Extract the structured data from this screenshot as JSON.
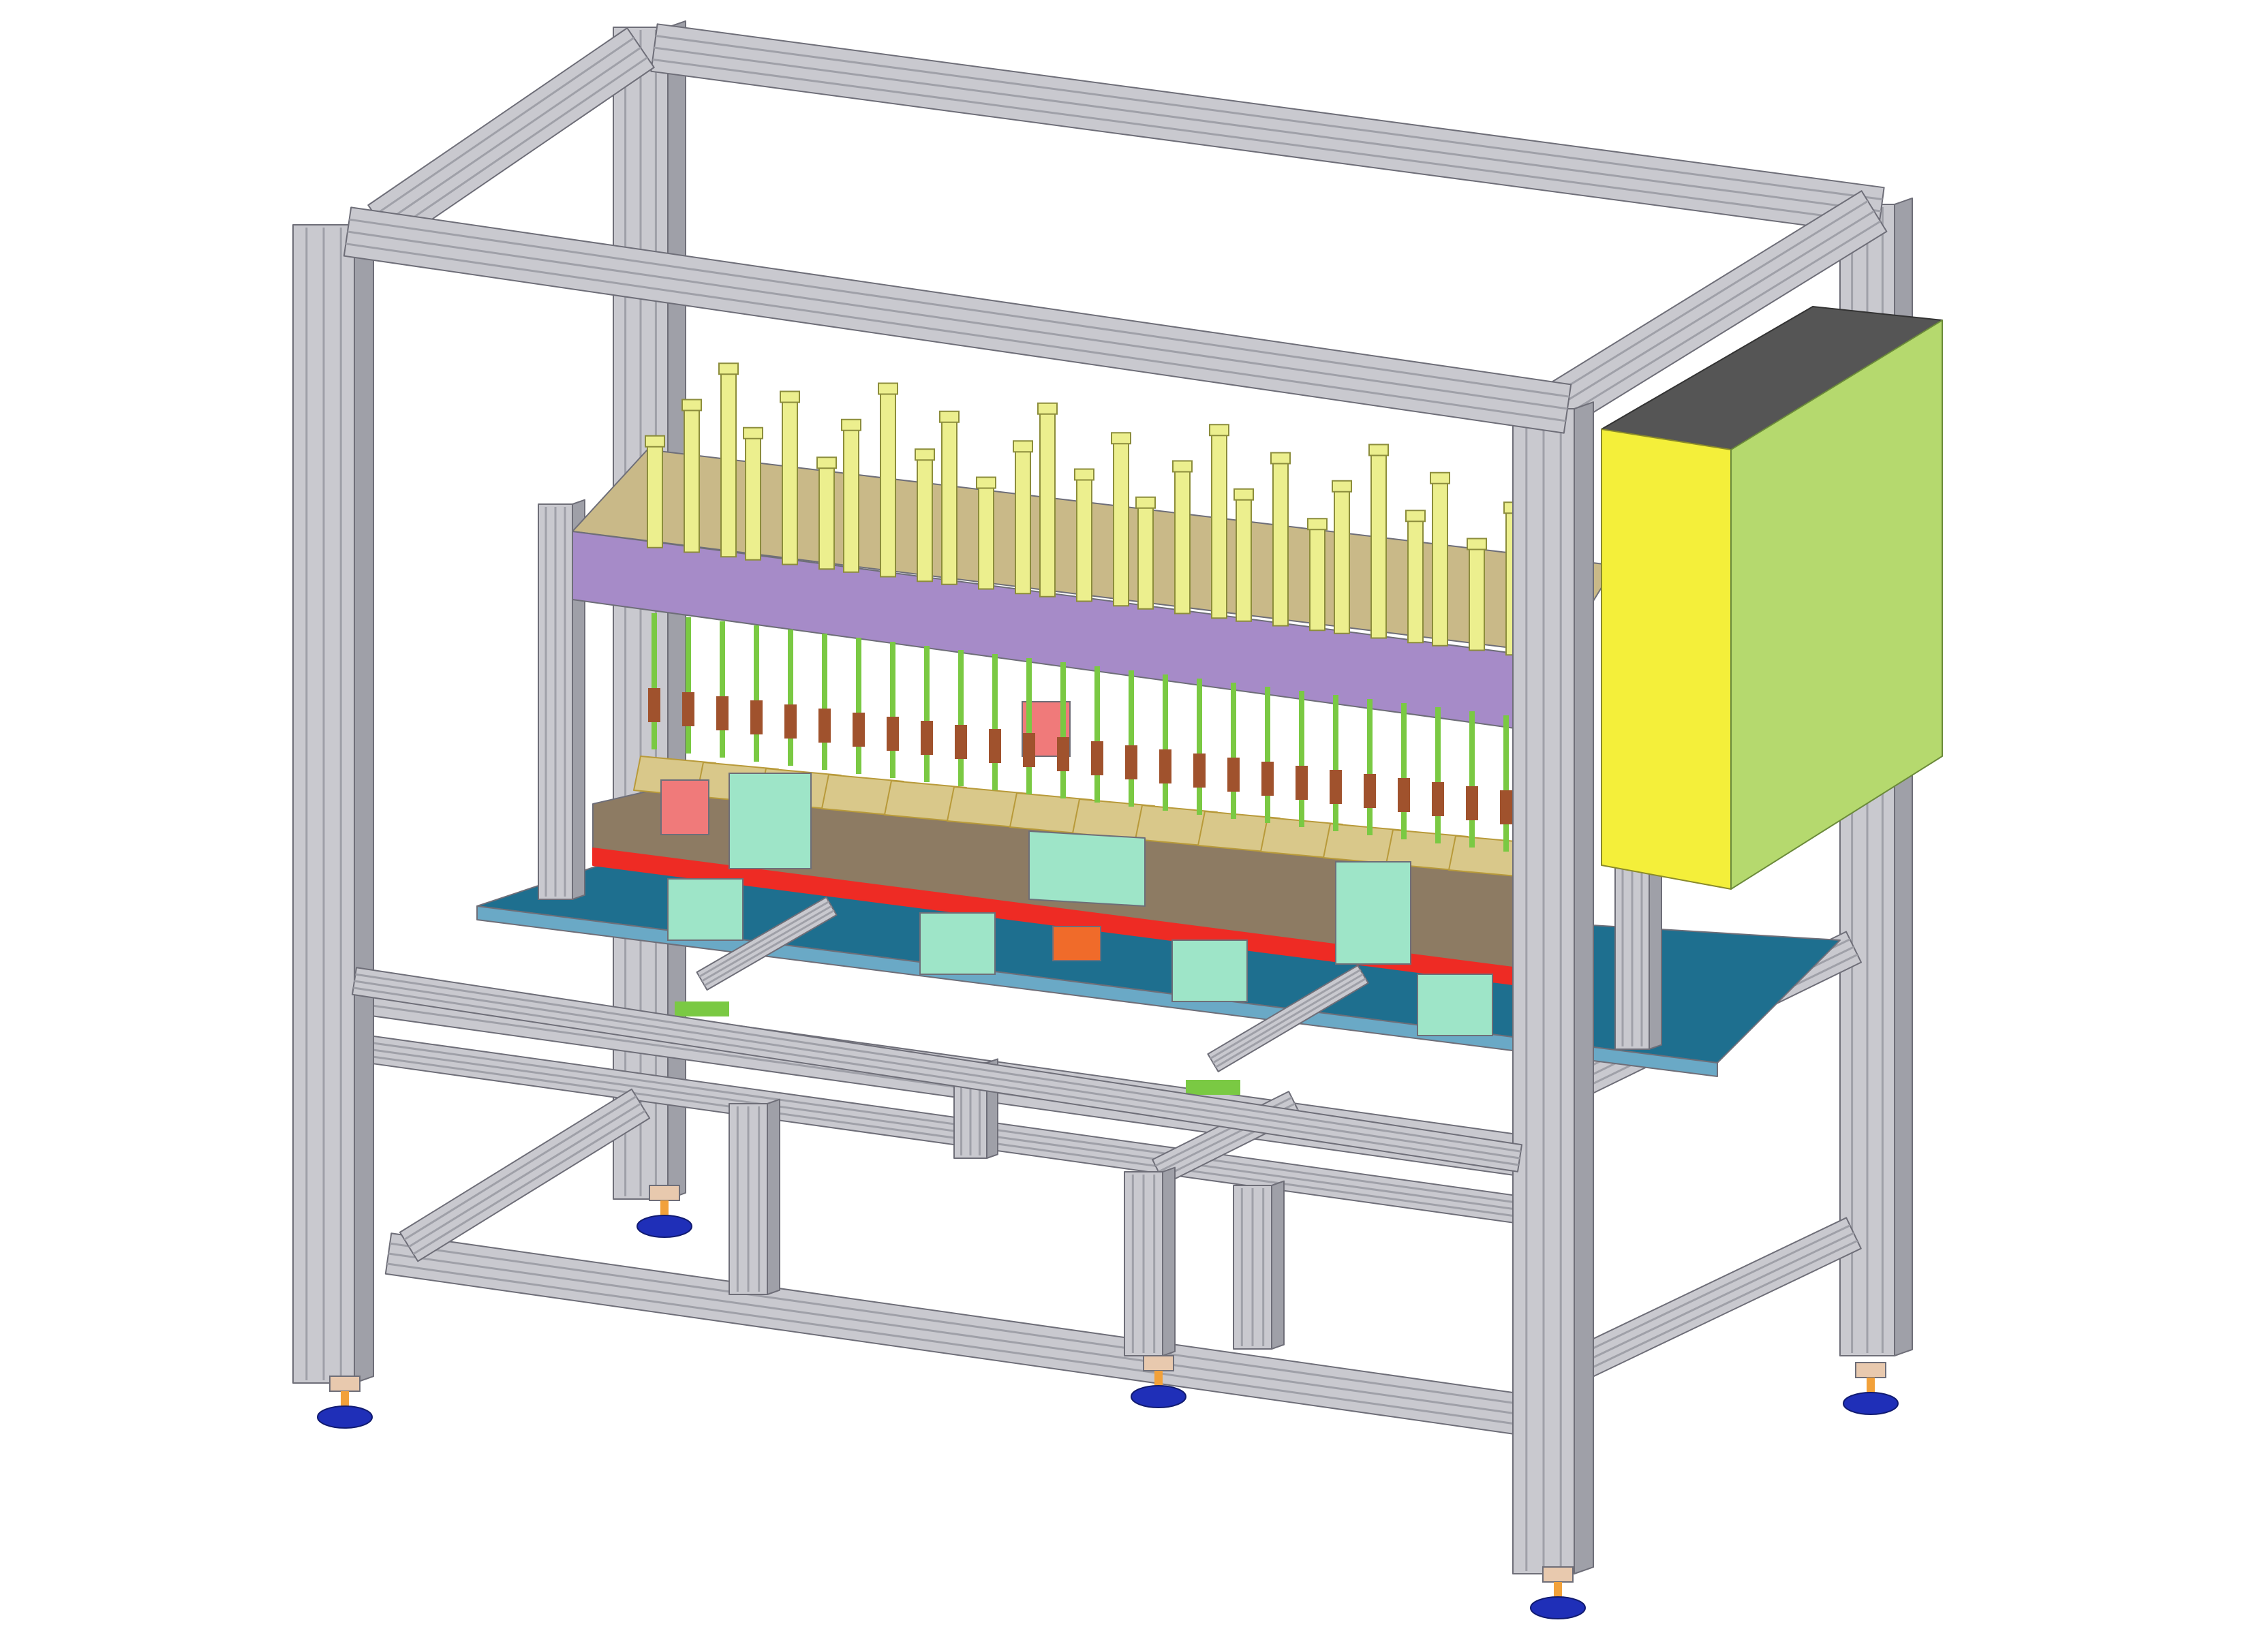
{
  "scene": {
    "subject": "",
    "colors": {
      "background": "#ffffff",
      "extrusion_light": "#c9c9cf",
      "extrusion_dark": "#9fa0a8",
      "extrusion_edge": "#6e6e78",
      "cabinet_front": "#f4ef3a",
      "cabinet_side": "#b5d96e",
      "cabinet_top": "#555555",
      "beam_top": "#c9b988",
      "beam_face": "#a68bc8",
      "cylinder": "#ecef8e",
      "cylinder_edge": "#8c8d3c",
      "rod": "#7ac943",
      "plate_blue": "#1e6f8f",
      "plate_blue_light": "#6aa9c6",
      "red_bar": "#ee2b24",
      "fixture_base": "#8d7b63",
      "fixture_part": "#d9c88a",
      "block_mint": "#9ee5c8",
      "block_pink": "#f07a7a",
      "block_orange": "#f06b2a",
      "foot_blue": "#1f2fb8",
      "foot_orange": "#f2a13a",
      "foot_pad": "#e8c9ae",
      "slide_rail": "#b79779"
    }
  }
}
